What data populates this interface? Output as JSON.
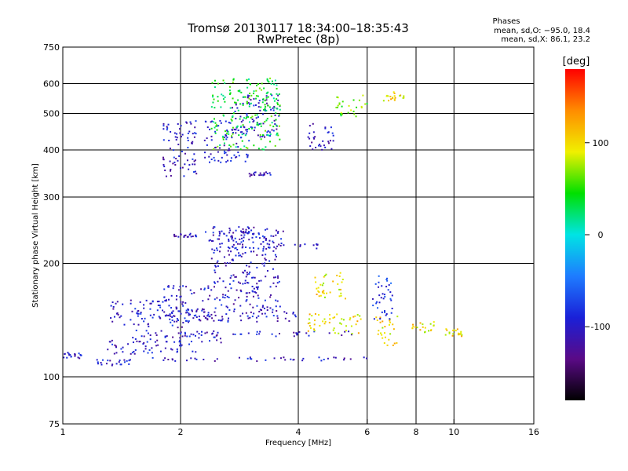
{
  "chart_data": {
    "type": "scatter",
    "title": "Tromsø 20130117 18:34:00–18:35:43",
    "subtitle": "RwPretec (8p)",
    "xlabel": "Frequency [MHz]",
    "ylabel": "Stationary phase Virtual Height [km]",
    "x_scale": "log",
    "y_scale": "log",
    "xlim": [
      1,
      16
    ],
    "ylim": [
      75,
      750
    ],
    "x_ticks": [
      1,
      2,
      4,
      6,
      8,
      10,
      16
    ],
    "y_ticks": [
      75,
      100,
      200,
      300,
      400,
      500,
      600,
      750
    ],
    "grid": true,
    "stats": {
      "heading": "Phases",
      "line_o": "mean, sd,O: −95.0, 18.4",
      "line_x": "mean, sd,X:  86.1, 23.2"
    },
    "colorbar": {
      "label": "[deg]",
      "range": [
        -180,
        180
      ],
      "ticks": [
        100,
        0,
        -100
      ],
      "colormap": [
        "#000000",
        "#5a0a86",
        "#1a20d8",
        "#1e7cff",
        "#00e4e4",
        "#00e000",
        "#f0f000",
        "#ff8c00",
        "#ff0000"
      ]
    },
    "traces": [
      {
        "name": "",
        "phase": -100,
        "x_range": [
          1.0,
          1.12
        ],
        "y": [
          112,
          116
        ]
      },
      {
        "name": "",
        "phase": -100,
        "x_range": [
          1.2,
          1.5
        ],
        "y": [
          107,
          111
        ]
      },
      {
        "name": "",
        "phase": -100,
        "x_range": [
          1.45,
          6.0
        ],
        "y": [
          110,
          113
        ]
      },
      {
        "name": "",
        "phase": -100,
        "x_range": [
          1.3,
          2.2
        ],
        "y": [
          115,
          125
        ]
      },
      {
        "name": "",
        "phase": -100,
        "x_range": [
          1.5,
          2.6
        ],
        "y": [
          123,
          133
        ]
      },
      {
        "name": "",
        "phase": -100,
        "x_range": [
          1.3,
          2.1
        ],
        "y": [
          135,
          160
        ]
      },
      {
        "name": "",
        "phase": -100,
        "x_range": [
          1.8,
          2.4
        ],
        "y": [
          140,
          175
        ]
      },
      {
        "name": "",
        "phase": -100,
        "x_range": [
          2.0,
          5.8
        ],
        "y": [
          128,
          132
        ]
      },
      {
        "name": "",
        "phase": -100,
        "x_range": [
          2.0,
          4.0
        ],
        "y": [
          140,
          150
        ]
      },
      {
        "name": "",
        "phase": -100,
        "x_range": [
          2.4,
          3.6
        ],
        "y": [
          150,
          250
        ]
      },
      {
        "name": "",
        "phase": -100,
        "x_range": [
          1.9,
          2.2
        ],
        "y": [
          235,
          240
        ]
      },
      {
        "name": "",
        "phase": -100,
        "x_range": [
          2.3,
          3.7
        ],
        "y": [
          225,
          245
        ]
      },
      {
        "name": "",
        "phase": -100,
        "x_range": [
          3.0,
          4.6
        ],
        "y": [
          218,
          225
        ]
      },
      {
        "name": "",
        "phase": -100,
        "x_range": [
          1.8,
          2.2
        ],
        "y": [
          340,
          480
        ]
      },
      {
        "name": "",
        "phase": -100,
        "x_range": [
          2.3,
          3.0
        ],
        "y": [
          370,
          480
        ]
      },
      {
        "name": "",
        "phase": -100,
        "x_range": [
          2.7,
          3.6
        ],
        "y": [
          430,
          560
        ]
      },
      {
        "name": "",
        "phase": -100,
        "x_range": [
          3.0,
          3.6
        ],
        "y": [
          340,
          350
        ]
      },
      {
        "name": "",
        "phase": -100,
        "x_range": [
          4.2,
          5.0
        ],
        "y": [
          400,
          470
        ]
      },
      {
        "name": "",
        "phase": 100,
        "x_range": [
          4.2,
          5.8
        ],
        "y": [
          130,
          148
        ]
      },
      {
        "name": "",
        "phase": 100,
        "x_range": [
          4.4,
          5.3
        ],
        "y": [
          160,
          190
        ]
      },
      {
        "name": "",
        "phase": 100,
        "x_range": [
          6.3,
          7.2
        ],
        "y": [
          120,
          145
        ]
      },
      {
        "name": "",
        "phase": 100,
        "x_range": [
          7.8,
          9.0
        ],
        "y": [
          130,
          140
        ]
      },
      {
        "name": "",
        "phase": 100,
        "x_range": [
          9.5,
          10.5
        ],
        "y": [
          128,
          134
        ]
      },
      {
        "name": "",
        "phase": 100,
        "x_range": [
          6.6,
          7.5
        ],
        "y": [
          540,
          570
        ]
      },
      {
        "name": "",
        "phase": -80,
        "x_range": [
          6.2,
          7.0
        ],
        "y": [
          140,
          185
        ]
      },
      {
        "name": "",
        "phase": 40,
        "x_range": [
          2.4,
          3.6
        ],
        "y": [
          400,
          620
        ]
      },
      {
        "name": "",
        "phase": 60,
        "x_range": [
          5.0,
          6.0
        ],
        "y": [
          490,
          560
        ]
      }
    ]
  }
}
